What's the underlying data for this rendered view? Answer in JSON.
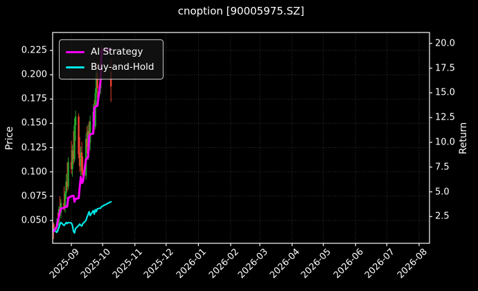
{
  "title": "cnoption [90005975.SZ]",
  "colors": {
    "background": "#000000",
    "text": "#ffffff",
    "grid": "#808080",
    "spine": "#ffffff",
    "ai_strategy": "#ff00ff",
    "buy_and_hold": "#00e8e8",
    "candle_up": "#26a52b",
    "candle_down": "#ef4130"
  },
  "chart_data": {
    "type": "candlestick",
    "title": "cnoption [90005975.SZ]",
    "ylabel_left": "Price",
    "ylabel_right": "Return",
    "grid": true,
    "legend_position": "upper left",
    "ylim_price": [
      0.0265,
      0.2435
    ],
    "ylim_return": [
      -0.2,
      21.1
    ],
    "xlim": [
      "2025-08-14",
      "2026-08-11"
    ],
    "price_ticks": [
      0.05,
      0.075,
      0.1,
      0.125,
      0.15,
      0.175,
      0.2,
      0.225
    ],
    "return_ticks": [
      2.5,
      5.0,
      7.5,
      10.0,
      12.5,
      15.0,
      17.5,
      20.0
    ],
    "x_ticks": [
      {
        "date": "2025-09-01",
        "label": "2025-09"
      },
      {
        "date": "2025-10-01",
        "label": "2025-10"
      },
      {
        "date": "2025-11-01",
        "label": "2025-11"
      },
      {
        "date": "2025-12-01",
        "label": "2025-12"
      },
      {
        "date": "2026-01-01",
        "label": "2026-01"
      },
      {
        "date": "2026-02-01",
        "label": "2026-02"
      },
      {
        "date": "2026-03-01",
        "label": "2026-03"
      },
      {
        "date": "2026-04-01",
        "label": "2026-04"
      },
      {
        "date": "2026-05-01",
        "label": "2026-05"
      },
      {
        "date": "2026-06-01",
        "label": "2026-06"
      },
      {
        "date": "2026-07-01",
        "label": "2026-07"
      },
      {
        "date": "2026-08-01",
        "label": "2026-08"
      }
    ],
    "up_color": "#26a52b",
    "down_color": "#ef4130",
    "dates": [
      "2025-08-15",
      "2025-08-18",
      "2025-08-19",
      "2025-08-20",
      "2025-08-21",
      "2025-08-22",
      "2025-08-25",
      "2025-08-26",
      "2025-08-27",
      "2025-08-28",
      "2025-08-29",
      "2025-09-01",
      "2025-09-02",
      "2025-09-03",
      "2025-09-04",
      "2025-09-05",
      "2025-09-08",
      "2025-09-09",
      "2025-09-10",
      "2025-09-11",
      "2025-09-12",
      "2025-09-15",
      "2025-09-16",
      "2025-09-17",
      "2025-09-18",
      "2025-09-19",
      "2025-09-22",
      "2025-09-23",
      "2025-09-24",
      "2025-09-25",
      "2025-09-26",
      "2025-09-29",
      "2025-09-30",
      "2025-10-09"
    ],
    "ohlc": [
      [
        0.046,
        0.048,
        0.031,
        0.042
      ],
      [
        0.042,
        0.052,
        0.038,
        0.048
      ],
      [
        0.048,
        0.058,
        0.044,
        0.045
      ],
      [
        0.045,
        0.065,
        0.043,
        0.062
      ],
      [
        0.062,
        0.075,
        0.055,
        0.058
      ],
      [
        0.058,
        0.072,
        0.052,
        0.068
      ],
      [
        0.068,
        0.085,
        0.06,
        0.064
      ],
      [
        0.064,
        0.08,
        0.058,
        0.078
      ],
      [
        0.078,
        0.098,
        0.072,
        0.09
      ],
      [
        0.09,
        0.11,
        0.08,
        0.085
      ],
      [
        0.085,
        0.115,
        0.082,
        0.11
      ],
      [
        0.11,
        0.132,
        0.098,
        0.103
      ],
      [
        0.103,
        0.128,
        0.095,
        0.122
      ],
      [
        0.122,
        0.142,
        0.108,
        0.113
      ],
      [
        0.113,
        0.155,
        0.11,
        0.148
      ],
      [
        0.148,
        0.163,
        0.132,
        0.157
      ],
      [
        0.157,
        0.16,
        0.114,
        0.118
      ],
      [
        0.118,
        0.136,
        0.1,
        0.106
      ],
      [
        0.106,
        0.126,
        0.094,
        0.12
      ],
      [
        0.12,
        0.131,
        0.097,
        0.101
      ],
      [
        0.101,
        0.116,
        0.088,
        0.096
      ],
      [
        0.096,
        0.14,
        0.092,
        0.134
      ],
      [
        0.134,
        0.147,
        0.119,
        0.126
      ],
      [
        0.126,
        0.149,
        0.112,
        0.142
      ],
      [
        0.142,
        0.152,
        0.124,
        0.13
      ],
      [
        0.13,
        0.158,
        0.122,
        0.152
      ],
      [
        0.152,
        0.17,
        0.138,
        0.162
      ],
      [
        0.162,
        0.174,
        0.142,
        0.147
      ],
      [
        0.147,
        0.186,
        0.144,
        0.181
      ],
      [
        0.181,
        0.207,
        0.168,
        0.202
      ],
      [
        0.202,
        0.212,
        0.176,
        0.186
      ],
      [
        0.186,
        0.218,
        0.18,
        0.212
      ],
      [
        0.212,
        0.23,
        0.196,
        0.203
      ],
      [
        0.203,
        0.216,
        0.172,
        0.188
      ]
    ],
    "series": [
      {
        "name": "AI Strategy",
        "color": "#ff00ff",
        "axis": "return",
        "values": [
          1.0,
          1.5,
          2.1,
          2.5,
          3.0,
          3.3,
          3.4,
          3.45,
          3.5,
          3.5,
          4.4,
          4.55,
          4.6,
          4.6,
          4.0,
          4.3,
          4.35,
          5.5,
          6.5,
          5.9,
          6.0,
          8.3,
          8.4,
          8.45,
          10.6,
          10.8,
          10.9,
          13.5,
          13.6,
          13.65,
          13.7,
          16.2,
          19.3,
          19.4
        ]
      },
      {
        "name": "Buy-and-Hold",
        "color": "#00e8e8",
        "axis": "return",
        "values": [
          1.2,
          0.9,
          1.1,
          1.4,
          1.7,
          1.9,
          1.6,
          1.75,
          1.9,
          1.8,
          1.9,
          1.85,
          1.6,
          1.0,
          0.85,
          1.3,
          1.6,
          1.75,
          1.6,
          1.55,
          1.8,
          2.1,
          2.45,
          2.7,
          3.0,
          2.6,
          3.1,
          2.75,
          3.2,
          3.0,
          3.3,
          3.35,
          3.5,
          4.0
        ]
      }
    ]
  }
}
